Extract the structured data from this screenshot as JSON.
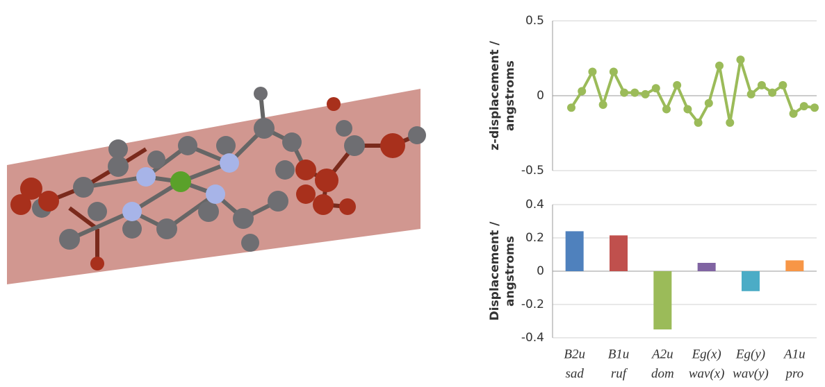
{
  "chart_data": [
    {
      "type": "line",
      "ylabel": [
        "z-displacement /",
        "angstroms"
      ],
      "series": [
        {
          "color": "#9bbb59",
          "values": [
            -0.08,
            0.03,
            0.16,
            -0.06,
            0.16,
            0.02,
            0.02,
            0.01,
            0.05,
            -0.09,
            0.07,
            -0.09,
            -0.18,
            -0.05,
            0.2,
            -0.18,
            0.24,
            0.01,
            0.07,
            0.02,
            0.07,
            -0.12,
            -0.07,
            -0.08
          ]
        }
      ],
      "ylim": [
        -0.5,
        0.5
      ],
      "yticks": [
        -0.5,
        0,
        0.5
      ],
      "grid": true
    },
    {
      "type": "bar",
      "ylabel": [
        "Displacement /",
        "angstroms"
      ],
      "symmetry": [
        "B2u",
        "B1u",
        "A2u",
        "Eg(x)",
        "Eg(y)",
        "A1u"
      ],
      "categories": [
        "sad",
        "ruf",
        "dom",
        "wav(x)",
        "wav(y)",
        "pro"
      ],
      "values": [
        0.24,
        0.215,
        -0.35,
        0.05,
        -0.12,
        0.065
      ],
      "colors": [
        "#4f81bd",
        "#c0504d",
        "#9bbb59",
        "#8064a2",
        "#4bacc6",
        "#f79646"
      ],
      "ylim": [
        -0.4,
        0.4
      ],
      "yticks": [
        -0.4,
        -0.2,
        0,
        0.2,
        0.4
      ],
      "grid": true
    }
  ]
}
